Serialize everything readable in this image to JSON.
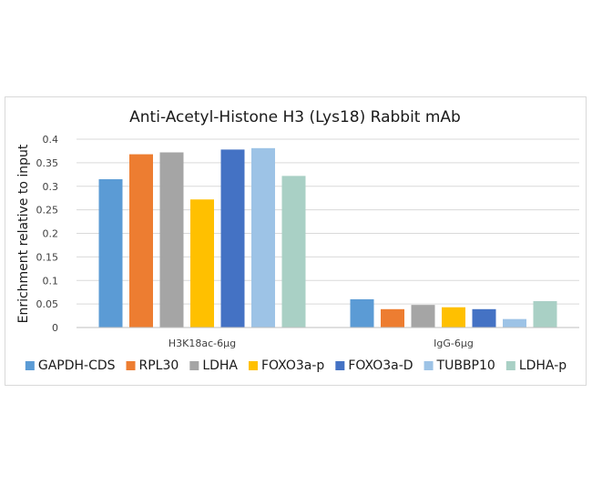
{
  "chart_data": {
    "type": "bar",
    "title": "Anti-Acetyl-Histone H3 (Lys18) Rabbit mAb",
    "xlabel": "",
    "ylabel": "Enrichment relative to input",
    "ylim": [
      0,
      0.4
    ],
    "yticks": [
      "0",
      "0.05",
      "0.1",
      "0.15",
      "0.2",
      "0.25",
      "0.3",
      "0.35",
      "0.4"
    ],
    "categories": [
      "H3K18ac-6μg",
      "IgG-6μg"
    ],
    "grid": true,
    "legend": "bottom",
    "series": [
      {
        "name": "GAPDH-CDS",
        "color": "#5b9bd5",
        "values": [
          0.315,
          0.06
        ]
      },
      {
        "name": "RPL30",
        "color": "#ed7d31",
        "values": [
          0.368,
          0.039
        ]
      },
      {
        "name": "LDHA",
        "color": "#a5a5a5",
        "values": [
          0.372,
          0.048
        ]
      },
      {
        "name": "FOXO3a-p",
        "color": "#ffc000",
        "values": [
          0.272,
          0.043
        ]
      },
      {
        "name": "FOXO3a-D",
        "color": "#4472c4",
        "values": [
          0.378,
          0.039
        ]
      },
      {
        "name": "TUBBP10",
        "color": "#9dc3e6",
        "values": [
          0.381,
          0.018
        ]
      },
      {
        "name": "LDHA-p",
        "color": "#a9d0c5",
        "values": [
          0.322,
          0.056
        ]
      }
    ]
  }
}
